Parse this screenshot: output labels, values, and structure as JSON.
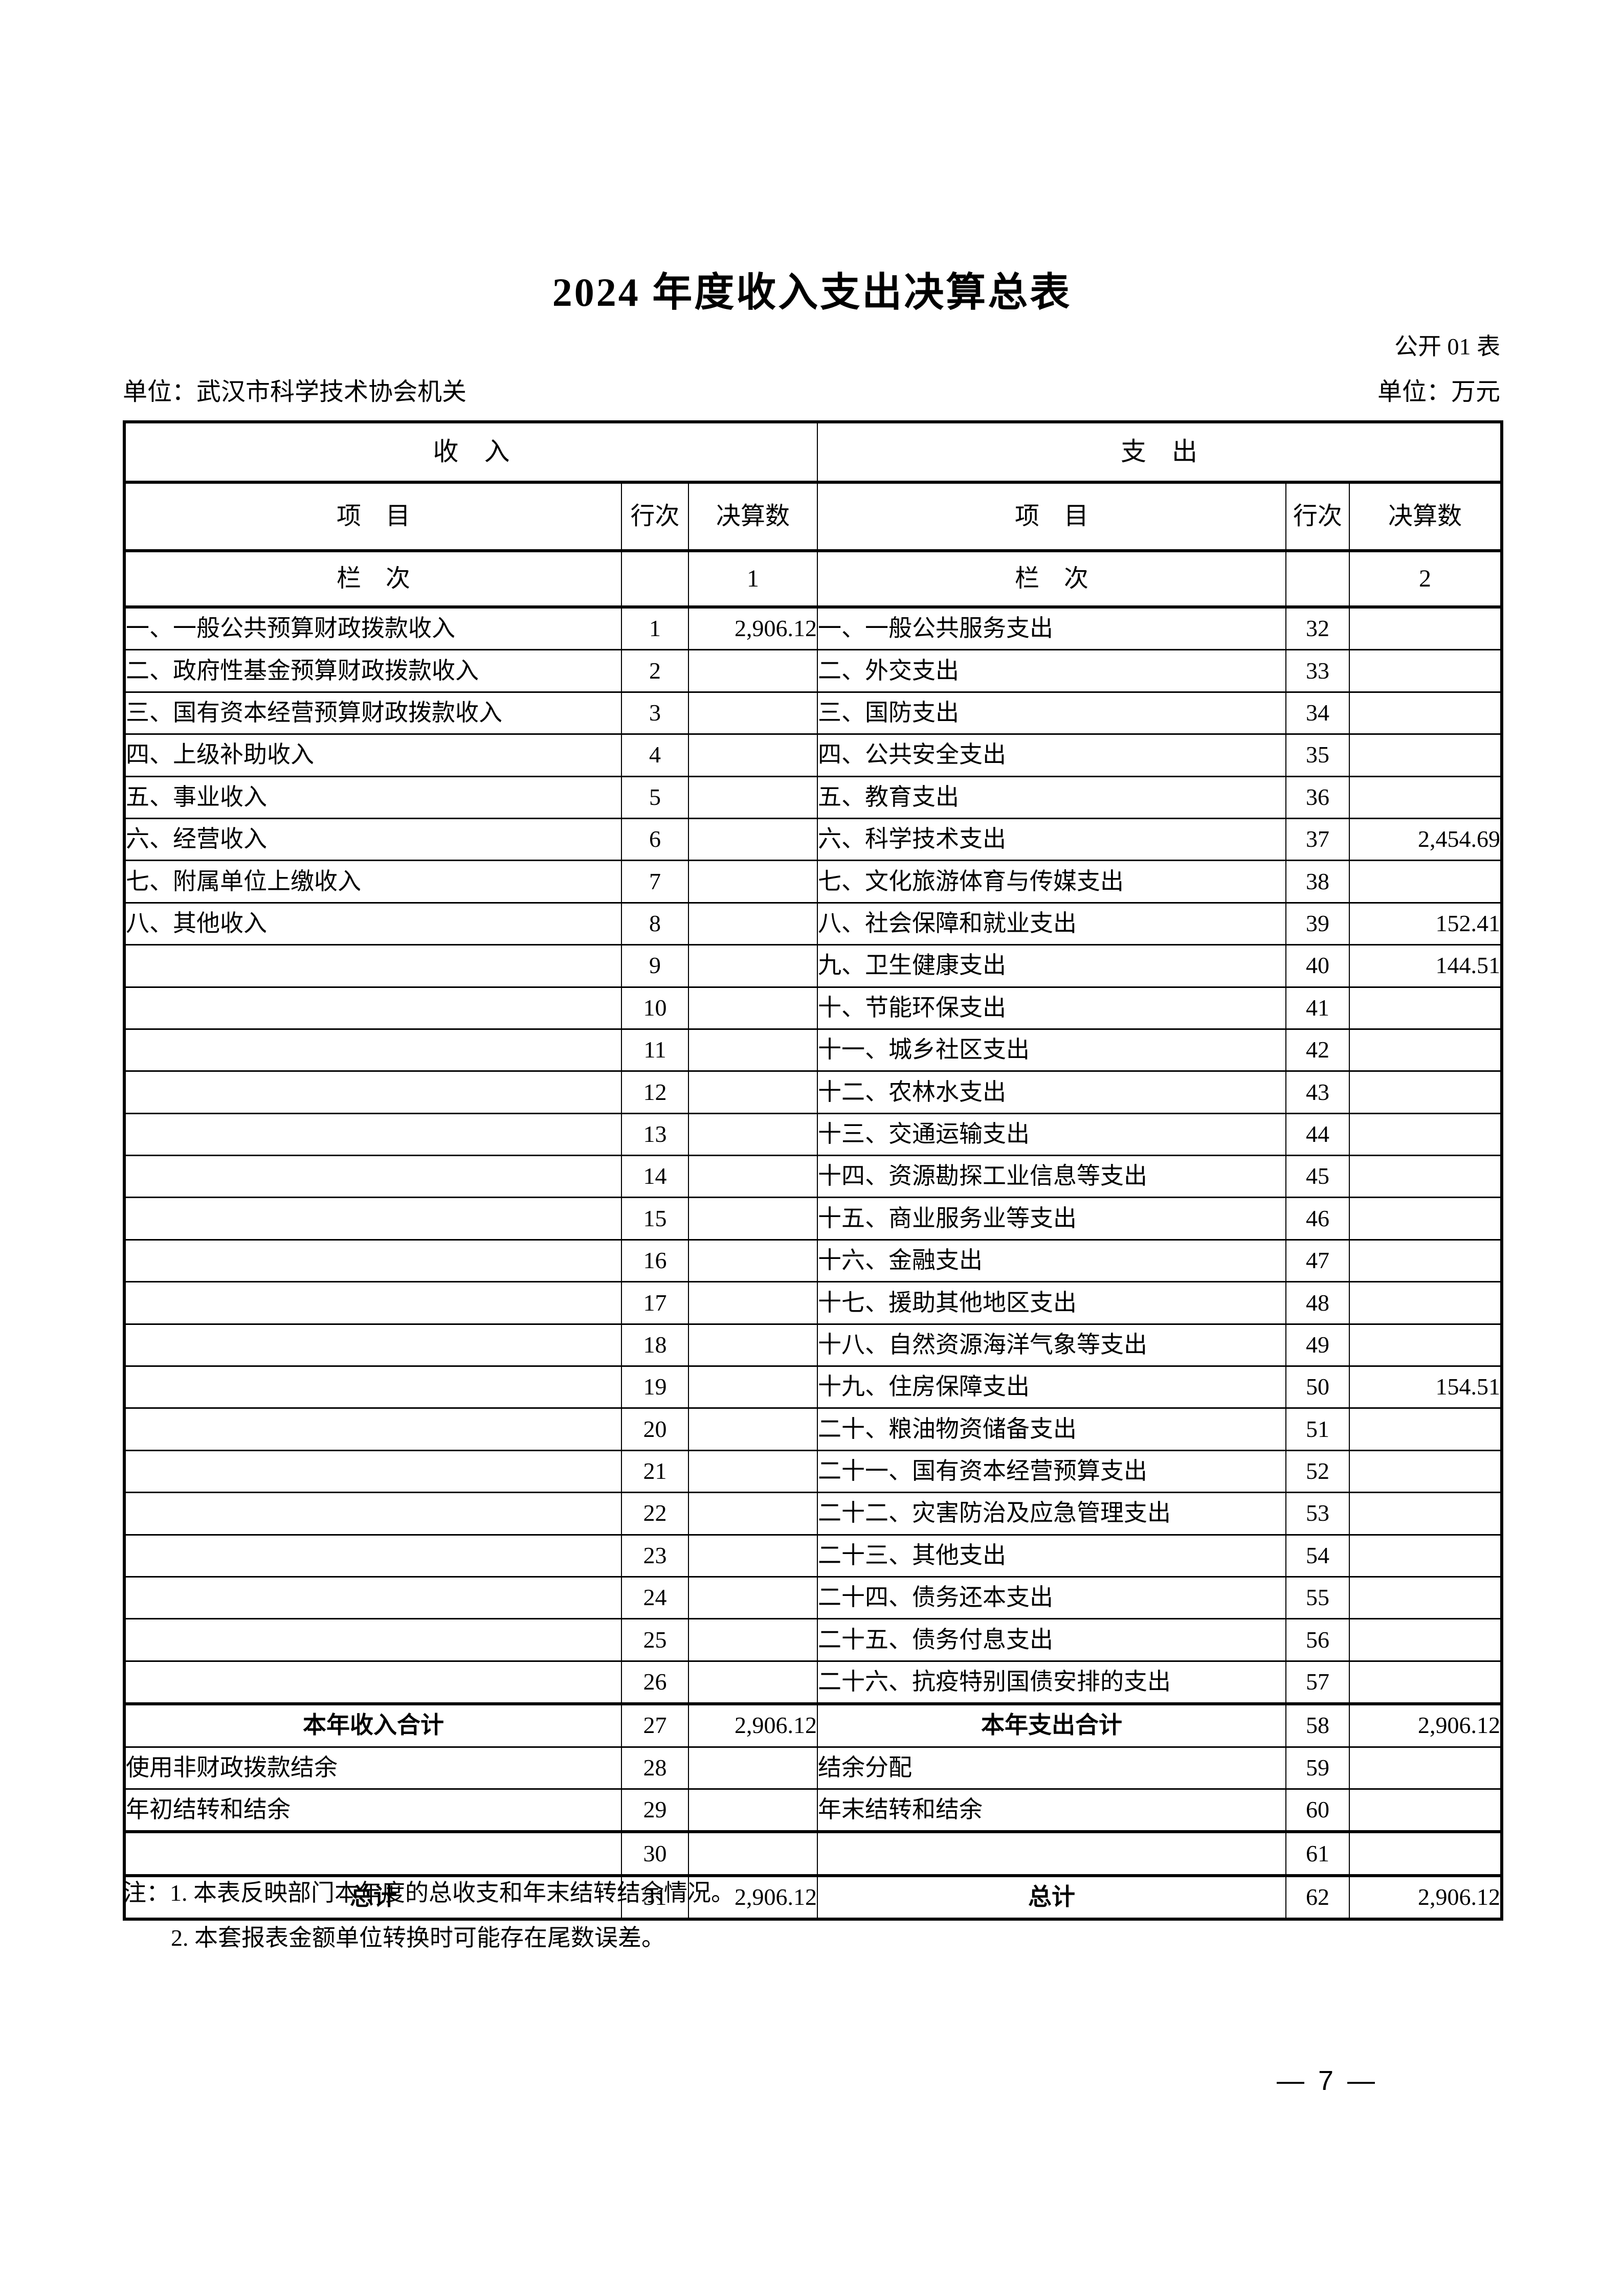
{
  "page": {
    "title": "2024 年度收入支出决算总表",
    "form_label": "公开 01 表",
    "unit_name": "单位：武汉市科学技术协会机关",
    "unit_currency": "单位：万元",
    "notes": {
      "line1": "注：1. 本表反映部门本年度的总收支和年末结转结余情况。",
      "line2": "2. 本套报表金额单位转换时可能存在尾数误差。"
    },
    "page_number": "— 7 —"
  },
  "table": {
    "sections": {
      "revenue": "收　入",
      "expenditure": "支　出"
    },
    "columns": {
      "item": "项　目",
      "line": "行次",
      "amount": "决算数"
    },
    "index_row": {
      "label": "栏　次",
      "revenue_index": "1",
      "expenditure_index": "2"
    },
    "rows": [
      {
        "l": "一、一般公共预算财政拨款收入",
        "ln": "1",
        "la": "2,906.12",
        "r": "一、一般公共服务支出",
        "rn": "32",
        "ra": "",
        "total": false
      },
      {
        "l": "二、政府性基金预算财政拨款收入",
        "ln": "2",
        "la": "",
        "r": "二、外交支出",
        "rn": "33",
        "ra": "",
        "total": false
      },
      {
        "l": "三、国有资本经营预算财政拨款收入",
        "ln": "3",
        "la": "",
        "r": "三、国防支出",
        "rn": "34",
        "ra": "",
        "total": false
      },
      {
        "l": "四、上级补助收入",
        "ln": "4",
        "la": "",
        "r": "四、公共安全支出",
        "rn": "35",
        "ra": "",
        "total": false
      },
      {
        "l": "五、事业收入",
        "ln": "5",
        "la": "",
        "r": "五、教育支出",
        "rn": "36",
        "ra": "",
        "total": false
      },
      {
        "l": "六、经营收入",
        "ln": "6",
        "la": "",
        "r": "六、科学技术支出",
        "rn": "37",
        "ra": "2,454.69",
        "total": false
      },
      {
        "l": "七、附属单位上缴收入",
        "ln": "7",
        "la": "",
        "r": "七、文化旅游体育与传媒支出",
        "rn": "38",
        "ra": "",
        "total": false
      },
      {
        "l": "八、其他收入",
        "ln": "8",
        "la": "",
        "r": "八、社会保障和就业支出",
        "rn": "39",
        "ra": "152.41",
        "total": false
      },
      {
        "l": "",
        "ln": "9",
        "la": "",
        "r": "九、卫生健康支出",
        "rn": "40",
        "ra": "144.51",
        "total": false
      },
      {
        "l": "",
        "ln": "10",
        "la": "",
        "r": "十、节能环保支出",
        "rn": "41",
        "ra": "",
        "total": false
      },
      {
        "l": "",
        "ln": "11",
        "la": "",
        "r": "十一、城乡社区支出",
        "rn": "42",
        "ra": "",
        "total": false
      },
      {
        "l": "",
        "ln": "12",
        "la": "",
        "r": "十二、农林水支出",
        "rn": "43",
        "ra": "",
        "total": false
      },
      {
        "l": "",
        "ln": "13",
        "la": "",
        "r": "十三、交通运输支出",
        "rn": "44",
        "ra": "",
        "total": false
      },
      {
        "l": "",
        "ln": "14",
        "la": "",
        "r": "十四、资源勘探工业信息等支出",
        "rn": "45",
        "ra": "",
        "total": false
      },
      {
        "l": "",
        "ln": "15",
        "la": "",
        "r": "十五、商业服务业等支出",
        "rn": "46",
        "ra": "",
        "total": false
      },
      {
        "l": "",
        "ln": "16",
        "la": "",
        "r": "十六、金融支出",
        "rn": "47",
        "ra": "",
        "total": false
      },
      {
        "l": "",
        "ln": "17",
        "la": "",
        "r": "十七、援助其他地区支出",
        "rn": "48",
        "ra": "",
        "total": false
      },
      {
        "l": "",
        "ln": "18",
        "la": "",
        "r": "十八、自然资源海洋气象等支出",
        "rn": "49",
        "ra": "",
        "total": false
      },
      {
        "l": "",
        "ln": "19",
        "la": "",
        "r": "十九、住房保障支出",
        "rn": "50",
        "ra": "154.51",
        "total": false
      },
      {
        "l": "",
        "ln": "20",
        "la": "",
        "r": "二十、粮油物资储备支出",
        "rn": "51",
        "ra": "",
        "total": false
      },
      {
        "l": "",
        "ln": "21",
        "la": "",
        "r": "二十一、国有资本经营预算支出",
        "rn": "52",
        "ra": "",
        "total": false
      },
      {
        "l": "",
        "ln": "22",
        "la": "",
        "r": "二十二、灾害防治及应急管理支出",
        "rn": "53",
        "ra": "",
        "total": false
      },
      {
        "l": "",
        "ln": "23",
        "la": "",
        "r": "二十三、其他支出",
        "rn": "54",
        "ra": "",
        "total": false
      },
      {
        "l": "",
        "ln": "24",
        "la": "",
        "r": "二十四、债务还本支出",
        "rn": "55",
        "ra": "",
        "total": false
      },
      {
        "l": "",
        "ln": "25",
        "la": "",
        "r": "二十五、债务付息支出",
        "rn": "56",
        "ra": "",
        "total": false
      },
      {
        "l": "",
        "ln": "26",
        "la": "",
        "r": "二十六、抗疫特别国债安排的支出",
        "rn": "57",
        "ra": "",
        "total": false
      },
      {
        "l": "本年收入合计",
        "ln": "27",
        "la": "2,906.12",
        "r": "本年支出合计",
        "rn": "58",
        "ra": "2,906.12",
        "total": true
      },
      {
        "l": "使用非财政拨款结余",
        "ln": "28",
        "la": "",
        "r": "结余分配",
        "rn": "59",
        "ra": "",
        "total": false
      },
      {
        "l": "年初结转和结余",
        "ln": "29",
        "la": "",
        "r": "年末结转和结余",
        "rn": "60",
        "ra": "",
        "total": false
      },
      {
        "l": "",
        "ln": "30",
        "la": "",
        "r": "",
        "rn": "61",
        "ra": "",
        "total": false
      },
      {
        "l": "总计",
        "ln": "31",
        "la": "2,906.12",
        "r": "总计",
        "rn": "62",
        "ra": "2,906.12",
        "total": true
      }
    ]
  }
}
